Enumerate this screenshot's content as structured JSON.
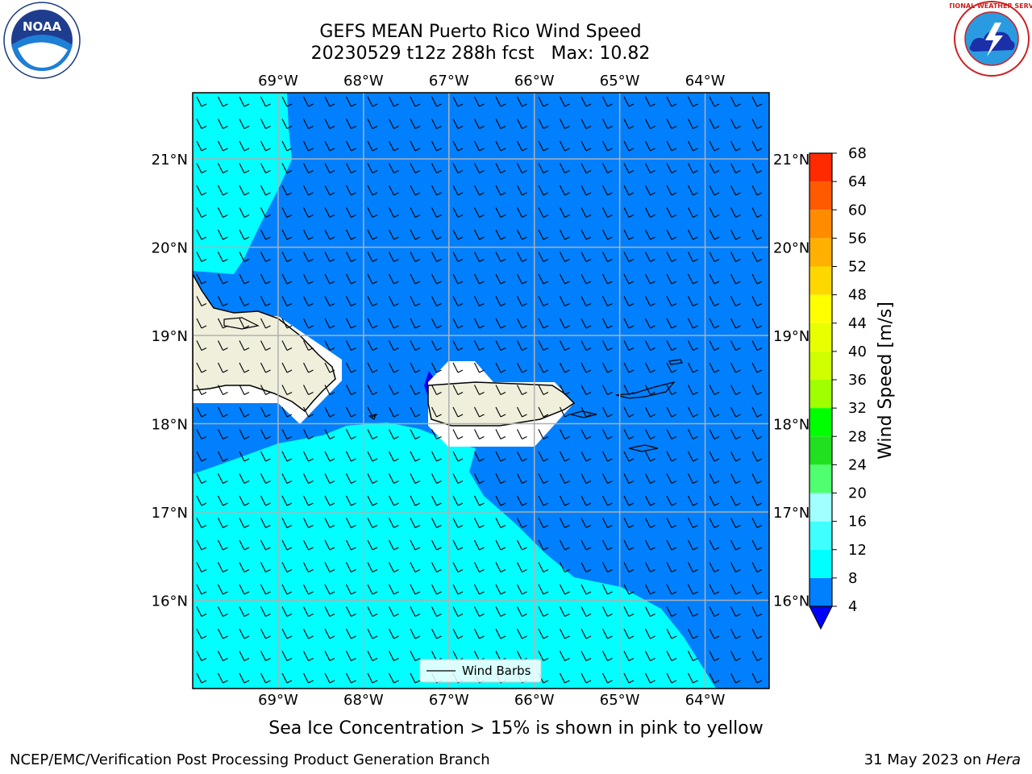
{
  "title": {
    "line1": "GEFS MEAN Puerto Rico Wind Speed",
    "line2": "20230529 t12z 288h fcst   Max: 10.82"
  },
  "map": {
    "lon_range": [
      -70.0,
      -63.25
    ],
    "lat_range": [
      15.0,
      21.75
    ],
    "lon_ticks": [
      {
        "value": -69,
        "label": "69°W"
      },
      {
        "value": -68,
        "label": "68°W"
      },
      {
        "value": -67,
        "label": "67°W"
      },
      {
        "value": -66,
        "label": "66°W"
      },
      {
        "value": -65,
        "label": "65°W"
      },
      {
        "value": -64,
        "label": "64°W"
      }
    ],
    "lat_ticks": [
      {
        "value": 21,
        "label": "21°N"
      },
      {
        "value": 20,
        "label": "20°N"
      },
      {
        "value": 19,
        "label": "19°N"
      },
      {
        "value": 18,
        "label": "18°N"
      },
      {
        "value": 17,
        "label": "17°N"
      },
      {
        "value": 16,
        "label": "16°N"
      }
    ],
    "legend_label": "Wind Barbs",
    "colors": {
      "ocean_4_8": "#0080ff",
      "ocean_8_12": "#00ffff",
      "land": "#efefdc",
      "mask": "#ffffff",
      "grid": "#b0b0b0",
      "below_4": "#0000ee"
    }
  },
  "colorbar": {
    "label": "Wind Speed [m/s]",
    "levels": [
      4,
      8,
      12,
      16,
      20,
      24,
      28,
      32,
      36,
      40,
      44,
      48,
      52,
      56,
      60,
      64,
      68
    ],
    "colors": [
      "#0080ff",
      "#00ffff",
      "#40ffff",
      "#a0ffff",
      "#50ff70",
      "#20e020",
      "#00ff00",
      "#a0ff00",
      "#cfff00",
      "#e8ff00",
      "#ffff00",
      "#ffd700",
      "#ffb000",
      "#ff8c00",
      "#ff5a00",
      "#ff2a00"
    ],
    "under_color": "#0000ff"
  },
  "caption": "Sea Ice Concentration > 15% is shown in pink to yellow",
  "footer": {
    "left": "NCEP/EMC/Verification Post Processing Product Generation Branch",
    "right_date": "31 May 2023 on ",
    "right_host": "Hera"
  },
  "logos": {
    "left": "NOAA",
    "right": "NATIONAL WEATHER SERVICE"
  }
}
